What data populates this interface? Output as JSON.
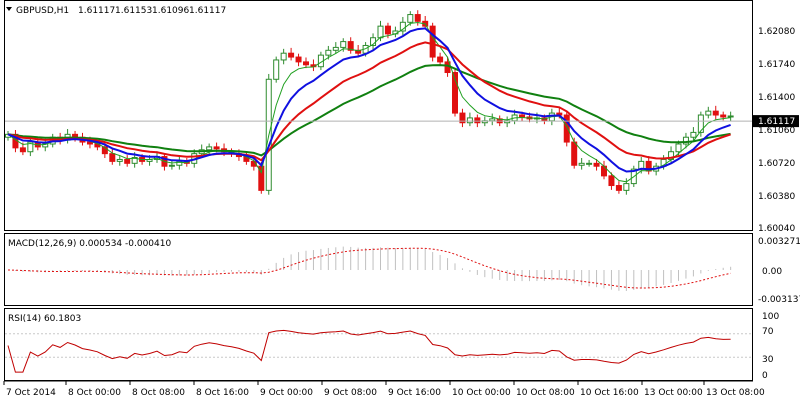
{
  "colors": {
    "bull": "#2e8b2e",
    "bear": "#e01010",
    "ma_fast": "#1010e0",
    "ma_mid": "#e01010",
    "ma_slow": "#108010",
    "ma_thin": "#20a020",
    "macd": "#c0c0c0",
    "signal": "#e01010",
    "rsi": "#c00000",
    "grid": "#c8c8c8",
    "bg": "#ffffff"
  },
  "chart_data": [
    {
      "type": "candlestick",
      "title": "GBPUSD,H1",
      "header_values": [
        "1.61117",
        "1.61153",
        "1.61096",
        "1.61117"
      ],
      "yticks": [
        "1.62080",
        "1.61740",
        "1.61400",
        "1.61060",
        "1.60720",
        "1.60380",
        "1.60040"
      ],
      "ylim": [
        1.6,
        1.6235
      ],
      "current_price": "1.61117",
      "grid": false,
      "xticks": [
        "7 Oct 2014",
        "8 Oct 00:00",
        "8 Oct 08:00",
        "8 Oct 16:00",
        "9 Oct 00:00",
        "9 Oct 08:00",
        "9 Oct 16:00",
        "10 Oct 00:00",
        "10 Oct 08:00",
        "10 Oct 16:00",
        "13 Oct 00:00",
        "13 Oct 08:00"
      ],
      "closes": [
        1.6098,
        1.6084,
        1.608,
        1.609,
        1.6085,
        1.6088,
        1.6095,
        1.6092,
        1.6098,
        1.6095,
        1.609,
        1.6088,
        1.6085,
        1.6078,
        1.607,
        1.6072,
        1.6068,
        1.6074,
        1.607,
        1.6072,
        1.6075,
        1.6065,
        1.6066,
        1.607,
        1.6068,
        1.6078,
        1.6082,
        1.6085,
        1.6083,
        1.608,
        1.6078,
        1.6075,
        1.607,
        1.6065,
        1.604,
        1.6155,
        1.6175,
        1.6182,
        1.6178,
        1.6173,
        1.617,
        1.6168,
        1.618,
        1.6185,
        1.6188,
        1.6194,
        1.6185,
        1.6182,
        1.619,
        1.6198,
        1.621,
        1.6202,
        1.6205,
        1.6214,
        1.6222,
        1.6215,
        1.621,
        1.6178,
        1.6173,
        1.6162,
        1.612,
        1.611,
        1.6115,
        1.611,
        1.6112,
        1.6114,
        1.611,
        1.6112,
        1.6118,
        1.6116,
        1.6114,
        1.6115,
        1.6112,
        1.612,
        1.6118,
        1.609,
        1.6066,
        1.6068,
        1.6068,
        1.6065,
        1.6055,
        1.6045,
        1.604,
        1.6047,
        1.6062,
        1.607,
        1.606,
        1.6065,
        1.6072,
        1.608,
        1.6088,
        1.6095,
        1.61,
        1.6118,
        1.6122,
        1.6118,
        1.6116,
        1.6117
      ],
      "series": [
        {
          "name": "",
          "kind": "ma_fast"
        },
        {
          "name": "",
          "kind": "ma_mid"
        },
        {
          "name": "",
          "kind": "ma_slow"
        },
        {
          "name": "",
          "kind": "ma_thin"
        }
      ]
    },
    {
      "type": "histogram",
      "title": "MACD(12,26,9) 0.000534 -0.000410",
      "yticks": [
        "0.003271",
        "0.00",
        "-0.003137"
      ],
      "ylim": [
        -0.0037,
        0.0037
      ]
    },
    {
      "type": "line",
      "title": "RSI(14) 60.1803",
      "yticks": [
        "100",
        "70",
        "30",
        "0"
      ],
      "ylim": [
        0,
        100
      ],
      "levels": [
        70,
        30
      ]
    }
  ]
}
